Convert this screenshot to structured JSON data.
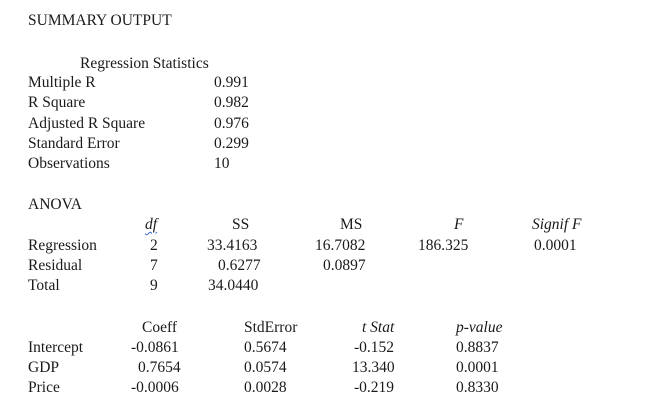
{
  "title": "SUMMARY OUTPUT",
  "regression_statistics": {
    "header": "Regression Statistics",
    "rows": [
      {
        "label": "Multiple R",
        "value": "0.991"
      },
      {
        "label": "R Square",
        "value": "0.982"
      },
      {
        "label": "Adjusted R Square",
        "value": "0.976"
      },
      {
        "label": "Standard Error",
        "value": "0.299"
      },
      {
        "label": "Observations",
        "value": "10"
      }
    ]
  },
  "anova": {
    "title": "ANOVA",
    "headers": {
      "df": "df",
      "ss": "SS",
      "ms": "MS",
      "f": "F",
      "signif_f": "Signif F"
    },
    "rows": [
      {
        "label": "Regression",
        "df": "2",
        "ss": "33.4163",
        "ms": "16.7082",
        "f": "186.325",
        "signif_f": "0.0001"
      },
      {
        "label": "Residual",
        "df": "7",
        "ss": "0.6277",
        "ms": "0.0897"
      },
      {
        "label": "Total",
        "df": "9",
        "ss": "34.0440"
      }
    ]
  },
  "coefficients": {
    "headers": {
      "coeff": "Coeff",
      "stderror": "StdError",
      "tstat": "t Stat",
      "pvalue": "p-value"
    },
    "rows": [
      {
        "label": "Intercept",
        "coeff": "-0.0861",
        "stderror": "0.5674",
        "tstat": "-0.152",
        "pvalue": "0.8837"
      },
      {
        "label": "GDP",
        "coeff": "0.7654",
        "stderror": "0.0574",
        "tstat": "13.340",
        "pvalue": "0.0001"
      },
      {
        "label": "Price",
        "coeff": "-0.0006",
        "stderror": "0.0028",
        "tstat": "-0.219",
        "pvalue": "0.8330"
      }
    ]
  }
}
